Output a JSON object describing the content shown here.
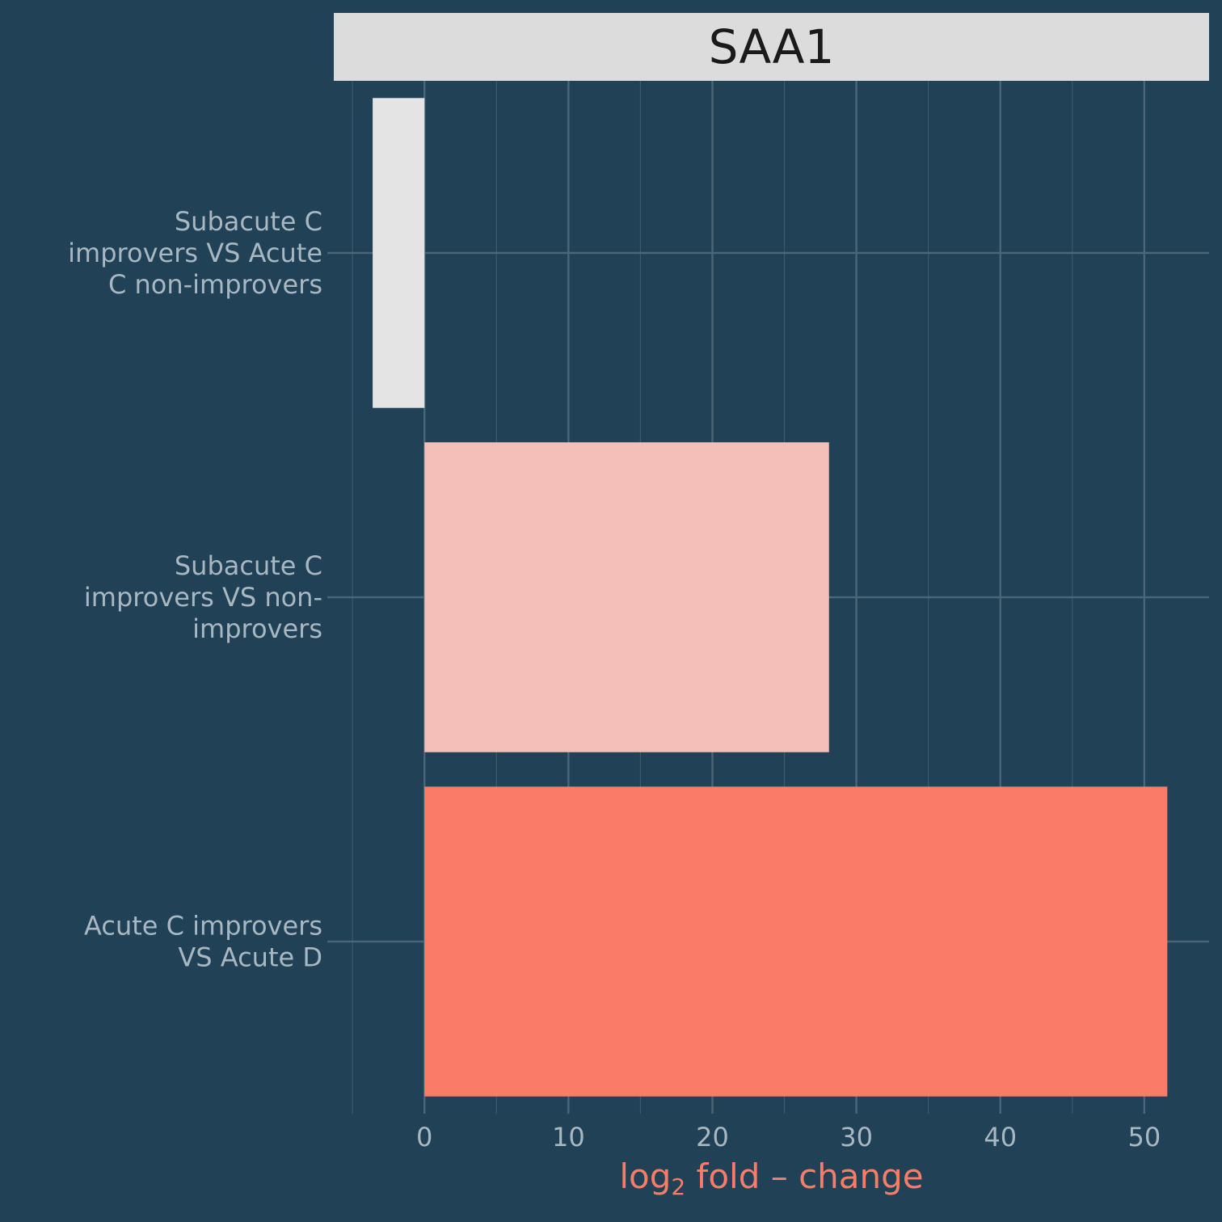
{
  "chart_data": {
    "type": "bar",
    "orientation": "horizontal",
    "facet_title": "SAA1",
    "categories": [
      [
        "Subacute C",
        "improvers VS Acute",
        "C non-improvers"
      ],
      [
        "Subacute C",
        "improvers VS non-",
        "improvers"
      ],
      [
        "Acute C improvers",
        "VS Acute D"
      ]
    ],
    "values": [
      -3.6,
      28.1,
      51.6
    ],
    "bar_colors": [
      "#e4e4e4",
      "#f4beb9",
      "#fa7b68"
    ],
    "xlabel_main": "log",
    "xlabel_sub": "2",
    "xlabel_rest": " fold – change",
    "xlim": [
      -6.3,
      54.5
    ],
    "xticks": [
      0,
      10,
      20,
      30,
      40,
      50
    ],
    "grid": true,
    "colors": {
      "background": "#204156",
      "strip": "#dcdcdc",
      "grid": "#4a6678",
      "tick_text": "#a9b7c1",
      "axis_title": "#fa7b68"
    }
  }
}
